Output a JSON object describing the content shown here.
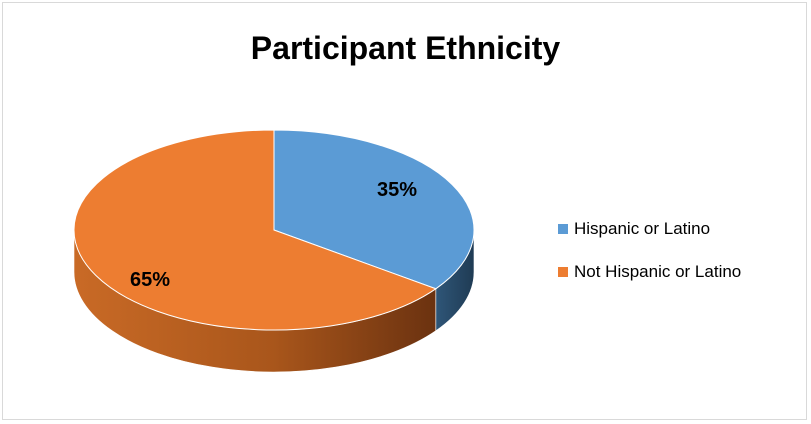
{
  "chart_data": {
    "type": "pie",
    "title": "Participant Ethnicity",
    "categories": [
      "Hispanic or Latino",
      "Not Hispanic or Latino"
    ],
    "values": [
      35,
      65
    ],
    "data_labels": [
      "35%",
      "65%"
    ],
    "colors": [
      "#5b9bd5",
      "#ed7d31"
    ],
    "legend_position": "right",
    "style": "3d"
  }
}
